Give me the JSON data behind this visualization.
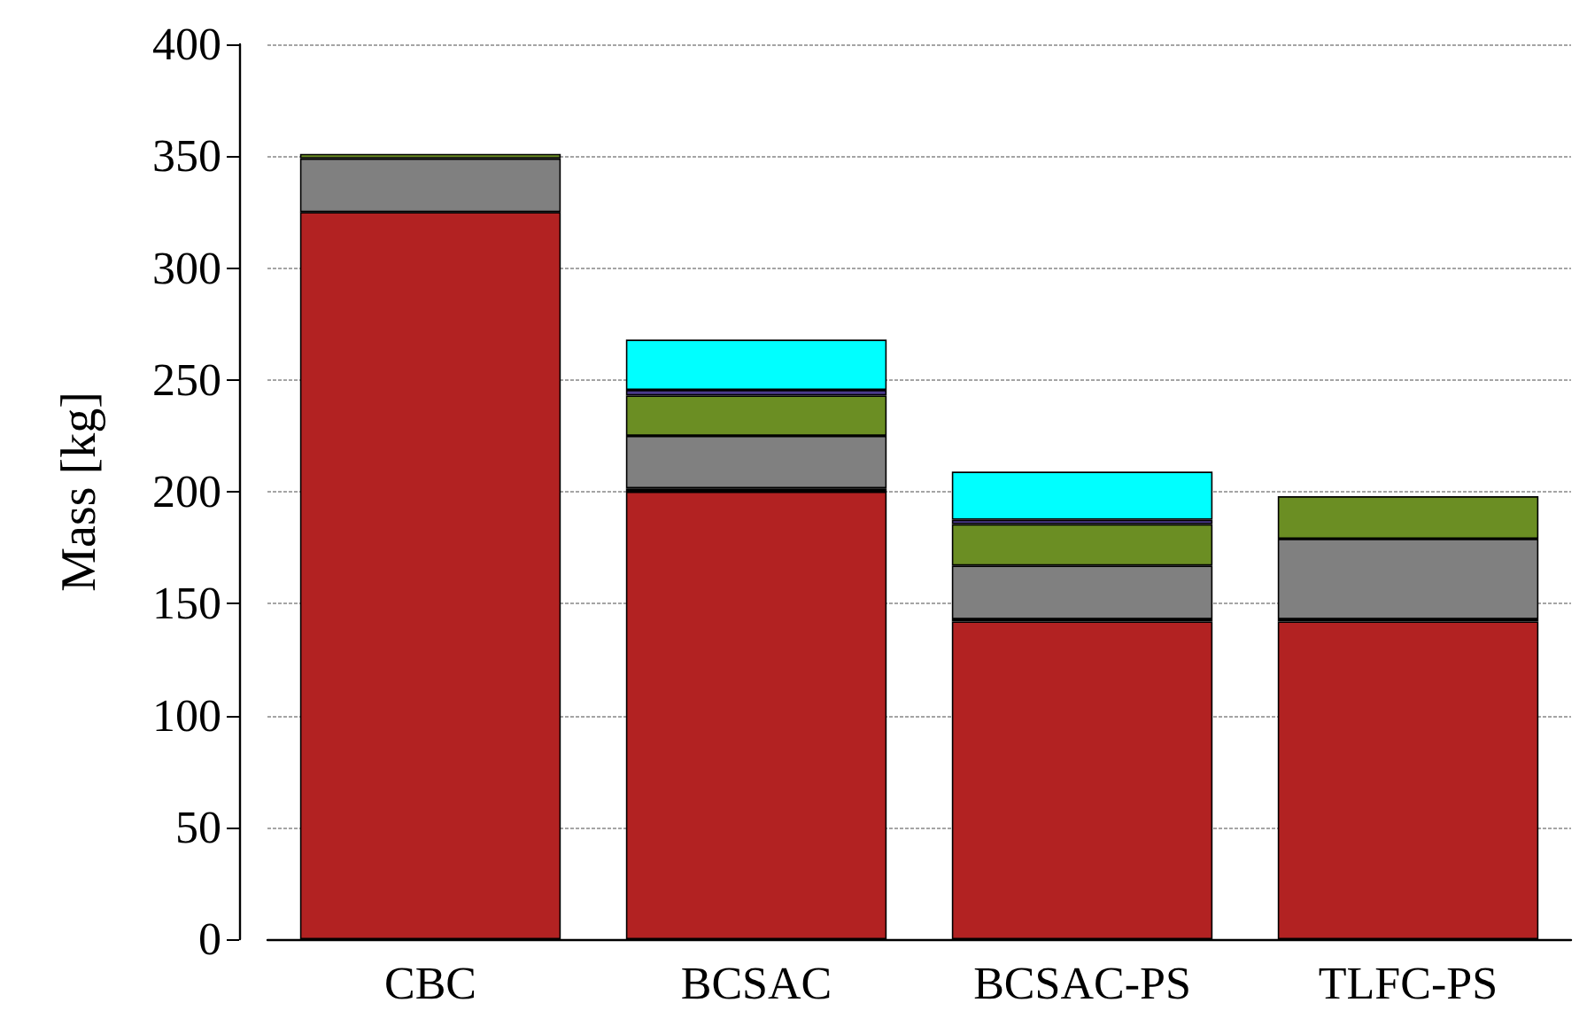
{
  "chart_data": {
    "type": "bar",
    "stacked": true,
    "ylabel": "Mass [kg]",
    "categories": [
      "CBC",
      "BCSAC",
      "BCSAC-PS",
      "TLFC-PS"
    ],
    "series": [
      {
        "color": "#b22222",
        "values": [
          325,
          200,
          142,
          142
        ]
      },
      {
        "color": "#000000",
        "values": [
          null,
          1.5,
          1,
          1
        ]
      },
      {
        "color": "#808080",
        "values": [
          24,
          23.5,
          24,
          36
        ]
      },
      {
        "color": "#6b8e23",
        "values": [
          2,
          18,
          18.5,
          19
        ]
      },
      {
        "color": "#4b3a8c",
        "values": [
          null,
          2.5,
          2,
          null
        ]
      },
      {
        "color": "#00ffff",
        "values": [
          null,
          22.5,
          21.5,
          null
        ]
      }
    ],
    "ylim": [
      0,
      400
    ],
    "yticks": [
      0,
      50,
      100,
      150,
      200,
      250,
      300,
      350,
      400
    ],
    "grid": "y"
  }
}
